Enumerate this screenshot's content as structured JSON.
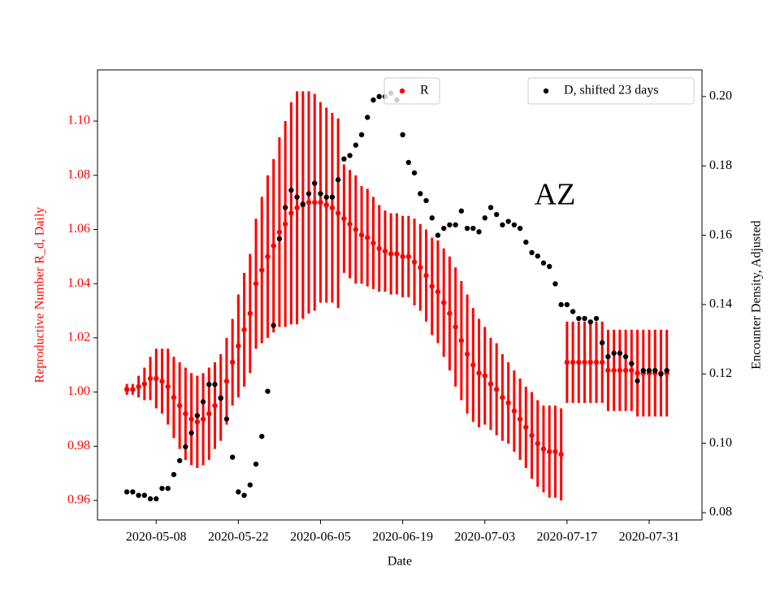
{
  "chart_data": {
    "type": "errorbar-dual",
    "annotation": "AZ",
    "xlabel": "Date",
    "ylabel": "Reproductive Number R_d, Daily",
    "y2label": "Encounter Density, Adjusted",
    "xlim": [
      "2020-04-28",
      "2020-08-09"
    ],
    "xticks": [
      "2020-05-08",
      "2020-05-22",
      "2020-06-05",
      "2020-06-19",
      "2020-07-03",
      "2020-07-17",
      "2020-07-31"
    ],
    "ylim": [
      0.9528,
      1.1189
    ],
    "yticks": [
      {
        "value": 0.96,
        "label": "0.96"
      },
      {
        "value": 0.98,
        "label": "0.98"
      },
      {
        "value": 1.0,
        "label": "1.00"
      },
      {
        "value": 1.02,
        "label": "1.02"
      },
      {
        "value": 1.04,
        "label": "1.04"
      },
      {
        "value": 1.06,
        "label": "1.06"
      },
      {
        "value": 1.08,
        "label": "1.08"
      },
      {
        "value": 1.1,
        "label": "1.10"
      }
    ],
    "y2lim": [
      0.0779,
      0.2077
    ],
    "y2ticks": [
      {
        "value": 0.08,
        "label": "0.08"
      },
      {
        "value": 0.1,
        "label": "0.10"
      },
      {
        "value": 0.12,
        "label": "0.12"
      },
      {
        "value": 0.14,
        "label": "0.14"
      },
      {
        "value": 0.16,
        "label": "0.16"
      },
      {
        "value": 0.18,
        "label": "0.18"
      },
      {
        "value": 0.2,
        "label": "0.20"
      }
    ],
    "x": [
      "2020-05-03",
      "2020-05-04",
      "2020-05-05",
      "2020-05-06",
      "2020-05-07",
      "2020-05-08",
      "2020-05-09",
      "2020-05-10",
      "2020-05-11",
      "2020-05-12",
      "2020-05-13",
      "2020-05-14",
      "2020-05-15",
      "2020-05-16",
      "2020-05-17",
      "2020-05-18",
      "2020-05-19",
      "2020-05-20",
      "2020-05-21",
      "2020-05-22",
      "2020-05-23",
      "2020-05-24",
      "2020-05-25",
      "2020-05-26",
      "2020-05-27",
      "2020-05-28",
      "2020-05-29",
      "2020-05-30",
      "2020-05-31",
      "2020-06-01",
      "2020-06-02",
      "2020-06-03",
      "2020-06-04",
      "2020-06-05",
      "2020-06-06",
      "2020-06-07",
      "2020-06-08",
      "2020-06-09",
      "2020-06-10",
      "2020-06-11",
      "2020-06-12",
      "2020-06-13",
      "2020-06-14",
      "2020-06-15",
      "2020-06-16",
      "2020-06-17",
      "2020-06-18",
      "2020-06-19",
      "2020-06-20",
      "2020-06-21",
      "2020-06-22",
      "2020-06-23",
      "2020-06-24",
      "2020-06-25",
      "2020-06-26",
      "2020-06-27",
      "2020-06-28",
      "2020-06-29",
      "2020-06-30",
      "2020-07-01",
      "2020-07-02",
      "2020-07-03",
      "2020-07-04",
      "2020-07-05",
      "2020-07-06",
      "2020-07-07",
      "2020-07-08",
      "2020-07-09",
      "2020-07-10",
      "2020-07-11",
      "2020-07-12",
      "2020-07-13",
      "2020-07-14",
      "2020-07-15",
      "2020-07-16",
      "2020-07-17",
      "2020-07-18",
      "2020-07-19",
      "2020-07-20",
      "2020-07-21",
      "2020-07-22",
      "2020-07-23",
      "2020-07-24",
      "2020-07-25",
      "2020-07-26",
      "2020-07-27",
      "2020-07-28",
      "2020-07-29",
      "2020-07-30",
      "2020-07-31",
      "2020-08-01",
      "2020-08-02",
      "2020-08-03"
    ],
    "series": [
      {
        "name": "R",
        "color": "#ff0000",
        "axis": "y",
        "legend_loc": "upper center",
        "values": [
          1.001,
          1.001,
          1.002,
          1.003,
          1.005,
          1.005,
          1.004,
          1.002,
          0.998,
          0.995,
          0.992,
          0.99,
          0.989,
          0.99,
          0.992,
          0.995,
          0.998,
          1.004,
          1.011,
          1.017,
          1.023,
          1.029,
          1.04,
          1.045,
          1.05,
          1.054,
          1.059,
          1.062,
          1.066,
          1.068,
          1.069,
          1.07,
          1.07,
          1.07,
          1.069,
          1.068,
          1.066,
          1.064,
          1.062,
          1.06,
          1.058,
          1.057,
          1.055,
          1.053,
          1.052,
          1.051,
          1.051,
          1.05,
          1.05,
          1.048,
          1.046,
          1.043,
          1.039,
          1.037,
          1.033,
          1.029,
          1.024,
          1.019,
          1.014,
          1.01,
          1.007,
          1.006,
          1.003,
          1.001,
          0.998,
          0.996,
          0.993,
          0.99,
          0.987,
          0.984,
          0.981,
          0.979,
          0.978,
          0.978,
          0.977,
          1.011,
          1.011,
          1.011,
          1.011,
          1.011,
          1.011,
          1.011,
          1.008,
          1.008,
          1.008,
          1.008,
          1.008,
          1.007,
          1.007,
          1.007,
          1.007,
          1.007,
          1.007
        ],
        "errors": [
          0.002,
          0.002,
          0.004,
          0.006,
          0.008,
          0.011,
          0.012,
          0.014,
          0.015,
          0.016,
          0.017,
          0.017,
          0.017,
          0.017,
          0.017,
          0.016,
          0.016,
          0.016,
          0.016,
          0.019,
          0.021,
          0.022,
          0.024,
          0.027,
          0.03,
          0.032,
          0.035,
          0.038,
          0.041,
          0.043,
          0.042,
          0.041,
          0.04,
          0.037,
          0.036,
          0.035,
          0.035,
          0.02,
          0.02,
          0.02,
          0.018,
          0.018,
          0.017,
          0.016,
          0.015,
          0.015,
          0.015,
          0.015,
          0.015,
          0.016,
          0.016,
          0.017,
          0.018,
          0.019,
          0.02,
          0.021,
          0.022,
          0.022,
          0.022,
          0.021,
          0.02,
          0.018,
          0.017,
          0.017,
          0.016,
          0.015,
          0.015,
          0.015,
          0.015,
          0.016,
          0.016,
          0.016,
          0.017,
          0.017,
          0.017,
          0.015,
          0.015,
          0.015,
          0.015,
          0.015,
          0.015,
          0.015,
          0.015,
          0.015,
          0.015,
          0.015,
          0.015,
          0.016,
          0.016,
          0.016,
          0.016,
          0.016,
          0.016
        ]
      },
      {
        "name": "D, shifted 23 days",
        "color": "#000000",
        "axis": "y2",
        "legend_loc": "upper right",
        "values": [
          0.086,
          0.086,
          0.085,
          0.085,
          0.084,
          0.084,
          0.087,
          0.087,
          0.091,
          0.095,
          0.099,
          0.103,
          0.108,
          0.112,
          0.117,
          0.117,
          0.113,
          0.107,
          0.096,
          0.086,
          0.085,
          0.088,
          0.094,
          0.102,
          0.115,
          0.134,
          0.159,
          0.168,
          0.173,
          0.171,
          0.169,
          0.172,
          0.175,
          0.172,
          0.171,
          0.171,
          0.176,
          0.182,
          0.183,
          0.186,
          0.189,
          0.194,
          0.199,
          0.2,
          0.2,
          0.201,
          0.199,
          0.189,
          0.181,
          0.178,
          0.172,
          0.17,
          0.165,
          0.16,
          0.162,
          0.163,
          0.163,
          0.167,
          0.162,
          0.162,
          0.161,
          0.165,
          0.168,
          0.166,
          0.163,
          0.164,
          0.163,
          0.162,
          0.158,
          0.155,
          0.154,
          0.152,
          0.151,
          0.146,
          0.14,
          0.14,
          0.138,
          0.136,
          0.136,
          0.135,
          0.136,
          0.129,
          0.125,
          0.126,
          0.126,
          0.125,
          0.123,
          0.118,
          0.121,
          0.121,
          0.121,
          0.12,
          0.121
        ]
      }
    ]
  }
}
